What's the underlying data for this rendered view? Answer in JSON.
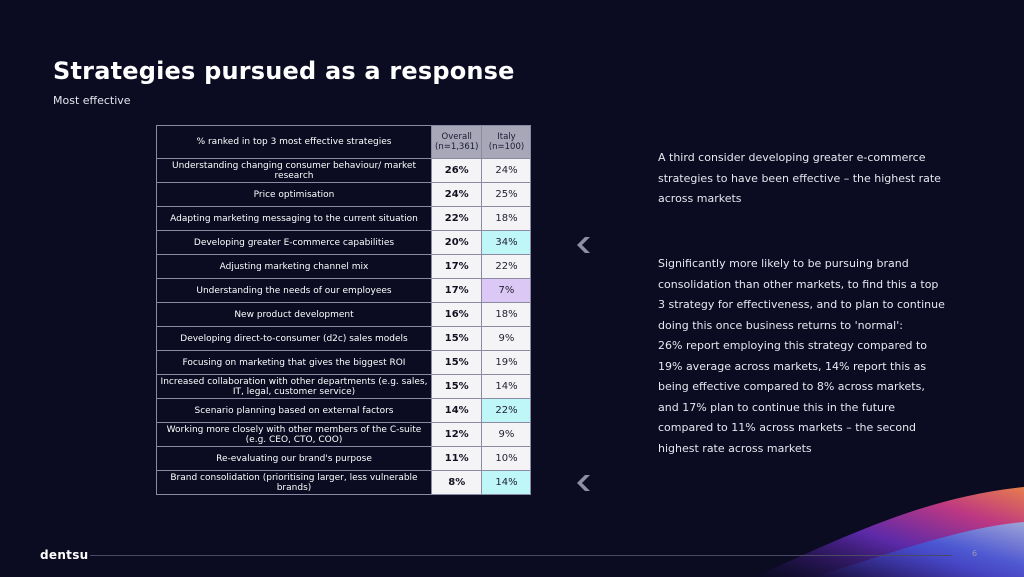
{
  "header": {
    "title": "Strategies pursued as a response",
    "subtitle": "Most effective"
  },
  "table": {
    "label_header": "% ranked in top 3 most effective strategies",
    "col1_header_line1": "Overall",
    "col1_header_line2": "(n=1,361)",
    "col2_header_line1": "Italy",
    "col2_header_line2": "(n=100)",
    "rows": [
      {
        "label": "Understanding changing consumer behaviour/ market research",
        "overall": "26%",
        "italy": "24%"
      },
      {
        "label": "Price optimisation",
        "overall": "24%",
        "italy": "25%"
      },
      {
        "label": "Adapting marketing messaging to the current situation",
        "overall": "22%",
        "italy": "18%"
      },
      {
        "label": "Developing greater E-commerce capabilities",
        "overall": "20%",
        "italy": "34%"
      },
      {
        "label": "Adjusting marketing channel mix",
        "overall": "17%",
        "italy": "22%"
      },
      {
        "label": "Understanding the needs of our employees",
        "overall": "17%",
        "italy": "7%"
      },
      {
        "label": "New product development",
        "overall": "16%",
        "italy": "18%"
      },
      {
        "label": "Developing direct-to-consumer (d2c) sales models",
        "overall": "15%",
        "italy": "9%"
      },
      {
        "label": "Focusing on marketing that gives the biggest ROI",
        "overall": "15%",
        "italy": "19%"
      },
      {
        "label": "Increased collaboration with other departments (e.g. sales, IT, legal, customer service)",
        "overall": "15%",
        "italy": "14%"
      },
      {
        "label": "Scenario planning based on external factors",
        "overall": "14%",
        "italy": "22%"
      },
      {
        "label": "Working more closely with other members of the C-suite (e.g. CEO, CTO, COO)",
        "overall": "12%",
        "italy": "9%"
      },
      {
        "label": "Re-evaluating our brand's purpose",
        "overall": "11%",
        "italy": "10%"
      },
      {
        "label": "Brand consolidation (prioritising larger, less vulnerable brands)",
        "overall": "8%",
        "italy": "14%"
      }
    ]
  },
  "notes": {
    "note1": "A third consider developing greater e-commerce strategies to have been effective – the highest rate across markets",
    "note2_p1": "Significantly more likely to be pursuing brand consolidation than other markets, to find this a top 3 strategy for effectiveness, and to plan to continue doing this once business returns to 'normal':",
    "note2_p2": "26% report employing this strategy compared to 19% average across markets, 14% report this as being effective compared to 8% across markets, and 17% plan to continue this in the future compared to 11% across markets – the second highest rate across markets"
  },
  "footer": {
    "logo": "dentsu",
    "page_number": "6"
  },
  "colors": {
    "background": "#0b0b22",
    "highlight_cyan": "#bff6f8",
    "highlight_purple": "#dcc8f4",
    "header_cell": "#a7a7b8"
  },
  "icons": {
    "arrow": "chevron-left-icon"
  }
}
